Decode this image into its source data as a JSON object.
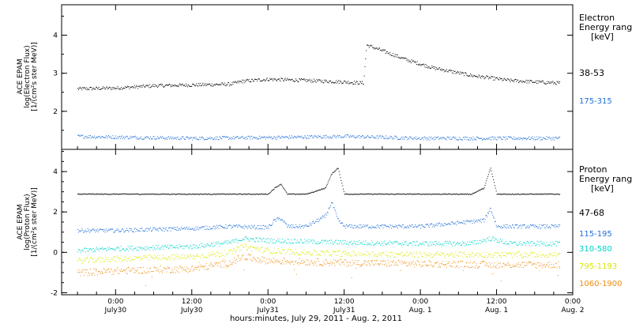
{
  "chart_data": [
    {
      "type": "scatter",
      "ylabel_lines": [
        "ACE EPAM",
        "log(Electron Flux)",
        "[1/(cm²s ster MeV)]"
      ],
      "ylim": [
        1.0,
        4.8
      ],
      "yticks": [
        "2",
        "3",
        "4"
      ],
      "legend_title_lines": [
        "Electron",
        "Energy range",
        "[keV]"
      ],
      "series": [
        {
          "name": "38-53",
          "color": "#000000",
          "x": [
            -6,
            0,
            6,
            12,
            18,
            20,
            24,
            30,
            36,
            39,
            39.5,
            42,
            46,
            50,
            56,
            62,
            66,
            70
          ],
          "y": [
            2.6,
            2.62,
            2.68,
            2.7,
            2.72,
            2.8,
            2.85,
            2.82,
            2.78,
            2.75,
            3.75,
            3.6,
            3.35,
            3.15,
            2.95,
            2.82,
            2.78,
            2.75
          ]
        },
        {
          "name": "175-315",
          "color": "#1f6fd8",
          "x": [
            -6,
            0,
            12,
            24,
            36,
            48,
            60,
            70
          ],
          "y": [
            1.35,
            1.33,
            1.3,
            1.32,
            1.35,
            1.3,
            1.3,
            1.3
          ]
        }
      ]
    },
    {
      "type": "scatter",
      "ylabel_lines": [
        "ACE EPAM",
        "log(Proton Flux)",
        "[1/(cm²s ster MeV)]"
      ],
      "ylim": [
        -2.1,
        5.1
      ],
      "yticks": [
        "-2",
        "0",
        "2",
        "4"
      ],
      "legend_title_lines": [
        "Proton",
        "Energy range",
        "[keV]"
      ],
      "series": [
        {
          "name": "47-68",
          "color": "#000000",
          "x": [
            -6,
            0,
            12,
            24,
            25,
            26,
            27,
            30,
            33,
            34,
            35,
            36,
            37,
            38,
            48,
            56,
            58,
            59,
            60,
            70
          ],
          "y": [
            2.9,
            2.9,
            2.9,
            2.9,
            3.2,
            3.4,
            2.9,
            2.9,
            3.2,
            3.9,
            4.2,
            2.9,
            2.9,
            2.9,
            2.9,
            2.9,
            3.2,
            4.2,
            2.9,
            2.9
          ]
        },
        {
          "name": "115-195",
          "color": "#1f6fd8",
          "x": [
            -6,
            0,
            12,
            18,
            24,
            25,
            26,
            27,
            30,
            33,
            34,
            35,
            36,
            37,
            48,
            58,
            59,
            60,
            70
          ],
          "y": [
            1.1,
            1.1,
            1.2,
            1.3,
            1.25,
            1.6,
            1.7,
            1.3,
            1.3,
            1.8,
            2.5,
            1.6,
            1.3,
            1.3,
            1.3,
            1.6,
            2.2,
            1.3,
            1.3
          ]
        },
        {
          "name": "310-580",
          "color": "#00d4c8",
          "x": [
            -6,
            0,
            12,
            18,
            20,
            24,
            30,
            36,
            48,
            56,
            59,
            62,
            70
          ],
          "y": [
            0.1,
            0.2,
            0.3,
            0.5,
            0.7,
            0.6,
            0.55,
            0.5,
            0.45,
            0.45,
            0.7,
            0.45,
            0.45
          ]
        },
        {
          "name": "795-1193",
          "color": "#d8e800",
          "x": [
            -6,
            0,
            12,
            18,
            20,
            24,
            30,
            36,
            48,
            60,
            70
          ],
          "y": [
            -0.4,
            -0.3,
            -0.2,
            0.0,
            0.3,
            0.1,
            0.0,
            -0.05,
            -0.1,
            -0.1,
            -0.1
          ]
        },
        {
          "name": "1060-1900",
          "color": "#f08c10",
          "x": [
            -6,
            0,
            12,
            18,
            20,
            24,
            30,
            36,
            48,
            60,
            70
          ],
          "y": [
            -1.0,
            -0.9,
            -0.8,
            -0.5,
            -0.2,
            -0.4,
            -0.45,
            -0.5,
            -0.55,
            -0.6,
            -0.6
          ]
        }
      ]
    }
  ],
  "xaxis": {
    "label": "hours:minutes, July 29, 2011 - Aug.  2, 2011",
    "ticks": [
      {
        "time": "0:00",
        "date": "July30"
      },
      {
        "time": "12:00",
        "date": "July30"
      },
      {
        "time": "0:00",
        "date": "July31"
      },
      {
        "time": "12:00",
        "date": "July31"
      },
      {
        "time": "0:00",
        "date": "Aug. 1"
      },
      {
        "time": "12:00",
        "date": "Aug. 1"
      },
      {
        "time": "0:00",
        "date": "Aug. 2"
      }
    ]
  }
}
